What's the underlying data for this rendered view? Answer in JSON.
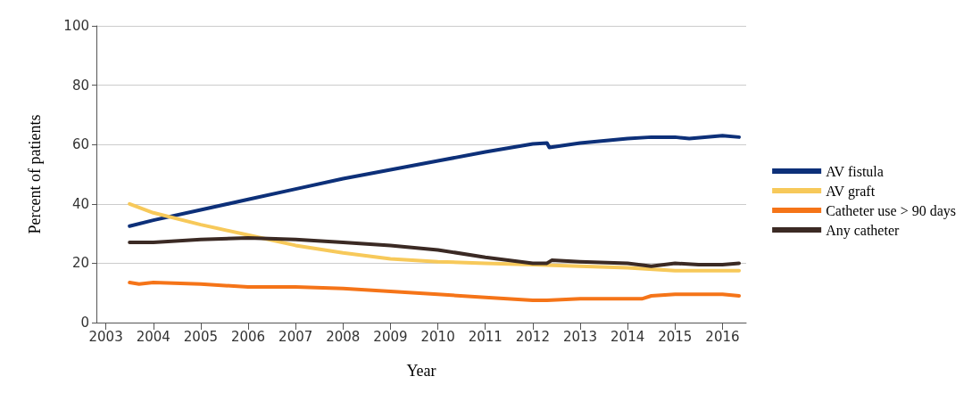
{
  "chart_data": {
    "type": "line",
    "xlabel": "Year",
    "ylabel": "Percent of patients",
    "xlim": [
      2002.8,
      2016.5
    ],
    "xticks": [
      2003,
      2004,
      2005,
      2006,
      2007,
      2008,
      2009,
      2010,
      2011,
      2012,
      2013,
      2014,
      2015,
      2016
    ],
    "ylim": [
      0,
      100
    ],
    "yticks": [
      0,
      20,
      40,
      60,
      80,
      100
    ],
    "grid": "y",
    "legend": "right",
    "marker": "none",
    "line_style": "solid",
    "series": [
      {
        "name": "AV fistula",
        "color": "#0d3079",
        "x": [
          2003.5,
          2004,
          2005,
          2006,
          2007,
          2008,
          2009,
          2010,
          2011,
          2012,
          2012.3,
          2012.35,
          2013,
          2014,
          2014.5,
          2015,
          2015.3,
          2016,
          2016.35
        ],
        "values": [
          32.5,
          34.5,
          38,
          41.5,
          45,
          48.5,
          51.5,
          54.5,
          57.5,
          60.2,
          60.5,
          59,
          60.5,
          62,
          62.5,
          62.5,
          62,
          63,
          62.5
        ]
      },
      {
        "name": "AV graft",
        "color": "#f7c95a",
        "x": [
          2003.5,
          2004,
          2005,
          2006,
          2007,
          2008,
          2009,
          2010,
          2011,
          2012,
          2013,
          2014,
          2015,
          2016,
          2016.35
        ],
        "values": [
          40,
          37,
          33,
          29.5,
          26,
          23.5,
          21.5,
          20.5,
          20,
          19.5,
          19,
          18.5,
          17.5,
          17.5,
          17.5
        ]
      },
      {
        "name": "Catheter use > 90 days",
        "color": "#f57418",
        "x": [
          2003.5,
          2003.7,
          2004,
          2005,
          2006,
          2007,
          2008,
          2009,
          2010,
          2011,
          2012,
          2012.3,
          2013,
          2014,
          2014.3,
          2014.5,
          2015,
          2016,
          2016.35
        ],
        "values": [
          13.5,
          13,
          13.5,
          13,
          12,
          12,
          11.5,
          10.5,
          9.5,
          8.5,
          7.5,
          7.5,
          8,
          8,
          8,
          9,
          9.5,
          9.5,
          9
        ]
      },
      {
        "name": "Any catheter",
        "color": "#3b2a24",
        "x": [
          2003.5,
          2004,
          2005,
          2006,
          2007,
          2008,
          2009,
          2010,
          2011,
          2012,
          2012.3,
          2012.4,
          2013,
          2014,
          2014.5,
          2015,
          2015.5,
          2016,
          2016.35
        ],
        "values": [
          27,
          27,
          28,
          28.5,
          28,
          27,
          26,
          24.5,
          22,
          20,
          20,
          21,
          20.5,
          20,
          19,
          20,
          19.5,
          19.5,
          20
        ]
      }
    ]
  }
}
